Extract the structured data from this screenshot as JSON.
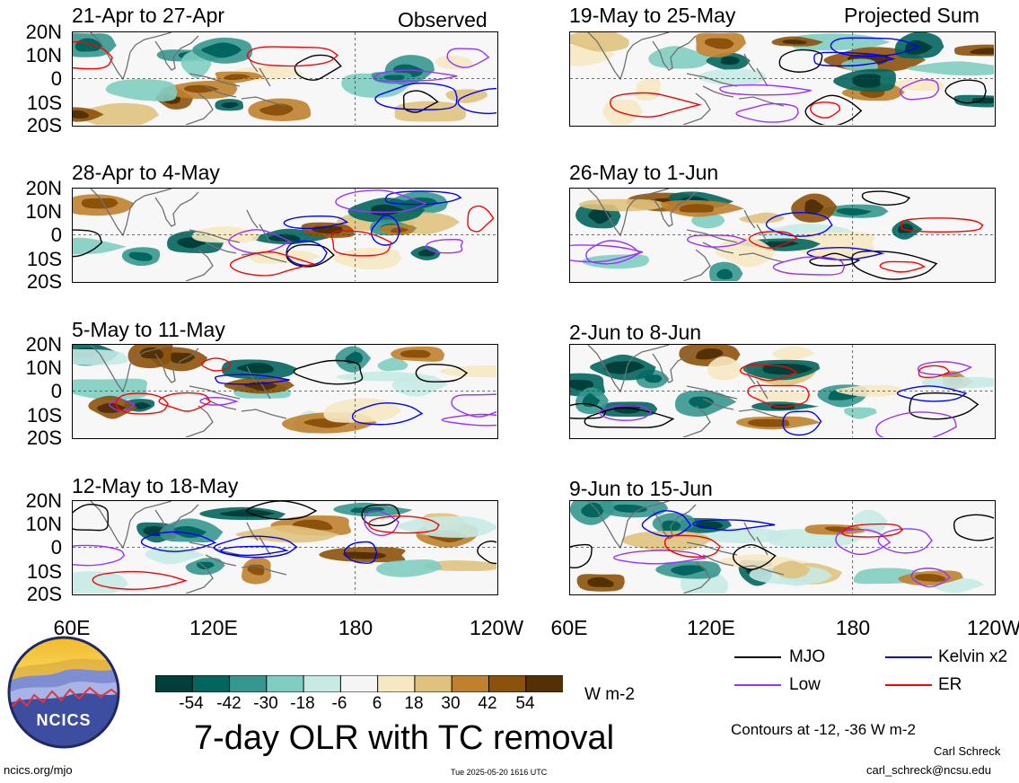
{
  "panels": [
    {
      "title": "21-Apr to 27-Apr",
      "tag": "Observed"
    },
    {
      "title": "28-Apr to 4-May",
      "tag": ""
    },
    {
      "title": "5-May to 11-May",
      "tag": ""
    },
    {
      "title": "12-May to 18-May",
      "tag": ""
    },
    {
      "title": "19-May to 25-May",
      "tag": "Projected Sum"
    },
    {
      "title": "26-May to 1-Jun",
      "tag": ""
    },
    {
      "title": "2-Jun to 8-Jun",
      "tag": ""
    },
    {
      "title": "9-Jun to 15-Jun",
      "tag": ""
    }
  ],
  "lat_labels": [
    "20N",
    "10N",
    "0",
    "10S",
    "20S"
  ],
  "lon_labels": [
    "60E",
    "120E",
    "180",
    "120W"
  ],
  "colorbar": {
    "labels": [
      "-54",
      "-42",
      "-30",
      "-18",
      "-6",
      "6",
      "18",
      "30",
      "42",
      "54"
    ],
    "colors": [
      "#01403a",
      "#02665e",
      "#35978f",
      "#80cdc1",
      "#c7eae5",
      "#f5f5f5",
      "#f6e8c3",
      "#dfc27d",
      "#bf812d",
      "#8c510a",
      "#543005"
    ],
    "unit": "W m-2"
  },
  "title": "7-day OLR with TC removal",
  "legend": [
    {
      "label": "MJO",
      "color": "#000000"
    },
    {
      "label": "Kelvin x2",
      "color": "#0000ff"
    },
    {
      "label": "Low",
      "color": "#9b30ff"
    },
    {
      "label": "ER",
      "color": "#ff0000"
    }
  ],
  "contours_note": "Contours at -12, -36 W m-2",
  "author": "Carl Schreck",
  "email": "carl_schreck@ncsu.edu",
  "website": "ncics.org/mjo",
  "timestamp": "Tue 2025-05-20 1616 UTC",
  "logo_text": "NCICS",
  "colors": {
    "land": "#707070",
    "mjo": "#000000",
    "kelvin": "#0000ff",
    "low": "#9b30ff",
    "er": "#ff0000"
  }
}
